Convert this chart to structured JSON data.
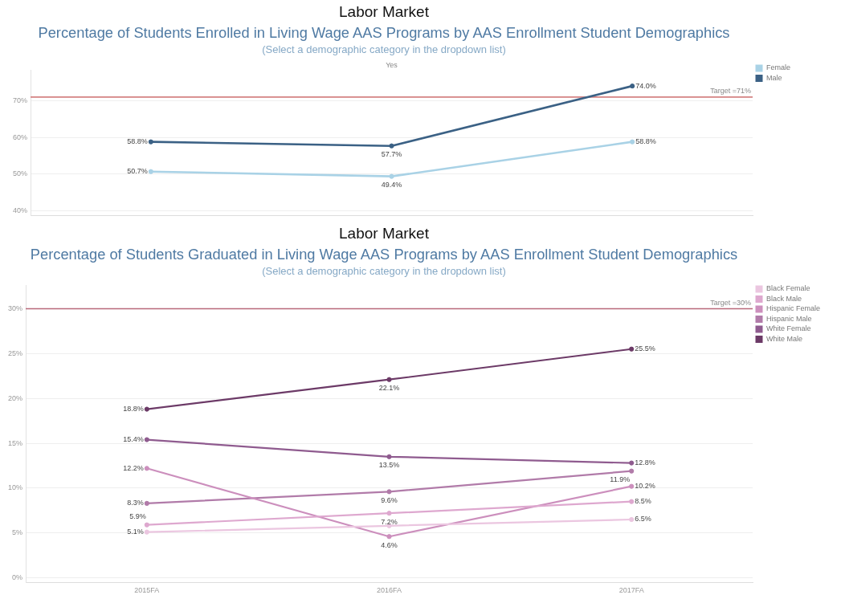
{
  "chart_data": [
    {
      "type": "line",
      "title": "Labor Market",
      "subtitle": "Percentage of Students Enrolled in Living Wage AAS Programs by AAS Enrollment Student Demographics",
      "annotations": [
        "(Select a demographic category in the dropdown list)",
        "Yes"
      ],
      "categories": [
        null,
        null,
        null
      ],
      "series": [
        {
          "name": "Female",
          "color": "#a9d2e6",
          "values": [
            50.7,
            49.4,
            58.8
          ],
          "value_labels": [
            "50.7%",
            "49.4%",
            "58.8%"
          ]
        },
        {
          "name": "Male",
          "color": "#3b6185",
          "values": [
            58.8,
            57.7,
            74.0
          ],
          "value_labels": [
            "58.8%",
            "57.7%",
            "74.0%"
          ]
        }
      ],
      "ylim": [
        38.7,
        78.4
      ],
      "yticks": [
        {
          "value": 40,
          "label": "40%"
        },
        {
          "value": 50,
          "label": "50%"
        },
        {
          "value": 60,
          "label": "60%"
        },
        {
          "value": 70,
          "label": "70%"
        }
      ],
      "ref_lines": [
        {
          "axis": "y",
          "value": 71,
          "label": "Target =71%",
          "color": "#d48282"
        }
      ],
      "grid": "y",
      "legend": "top right",
      "tick_labels": "y",
      "marker": "circle",
      "line_style": "solid"
    },
    {
      "type": "line",
      "title": "Labor Market",
      "subtitle": "Percentage of Students Graduated in Living Wage AAS Programs by AAS Enrollment Student Demographics",
      "annotations": [
        "(Select a demographic category in the dropdown list)"
      ],
      "categories": [
        "2015FA",
        "2016FA",
        "2017FA"
      ],
      "series": [
        {
          "name": "Black Female",
          "color": "#ebc6e0",
          "values": [
            5.1,
            5.8,
            6.5
          ],
          "value_labels": [
            "5.1%",
            null,
            "6.5%"
          ]
        },
        {
          "name": "Black Male",
          "color": "#dea8cf",
          "values": [
            5.9,
            7.2,
            8.5
          ],
          "value_labels": [
            "5.9%",
            "7.2%",
            "8.5%"
          ]
        },
        {
          "name": "Hispanic Female",
          "color": "#cc8fbd",
          "values": [
            12.2,
            4.6,
            10.2
          ],
          "value_labels": [
            "12.2%",
            "4.6%",
            "10.2%"
          ]
        },
        {
          "name": "Hispanic Male",
          "color": "#b17ba9",
          "values": [
            8.3,
            9.6,
            11.9
          ],
          "value_labels": [
            "8.3%",
            "9.6%",
            "11.9%"
          ]
        },
        {
          "name": "White Female",
          "color": "#8f5b8f",
          "values": [
            15.4,
            13.5,
            12.8
          ],
          "value_labels": [
            "15.4%",
            "13.5%",
            "12.8%"
          ]
        },
        {
          "name": "White Male",
          "color": "#6c3a67",
          "values": [
            18.8,
            22.1,
            25.5
          ],
          "value_labels": [
            "18.8%",
            "22.1%",
            "25.5%"
          ]
        }
      ],
      "ylim": [
        -0.5,
        32.6
      ],
      "yticks": [
        {
          "value": 0,
          "label": "0%"
        },
        {
          "value": 5,
          "label": "5%"
        },
        {
          "value": 10,
          "label": "10%"
        },
        {
          "value": 15,
          "label": "15%"
        },
        {
          "value": 20,
          "label": "20%"
        },
        {
          "value": 25,
          "label": "25%"
        },
        {
          "value": 30,
          "label": "30%"
        }
      ],
      "ref_lines": [
        {
          "axis": "y",
          "value": 30,
          "label": "Target =30%",
          "color": "#b9697a"
        }
      ],
      "grid": "y",
      "legend": "top right",
      "marker": "circle",
      "line_style": "solid"
    }
  ]
}
